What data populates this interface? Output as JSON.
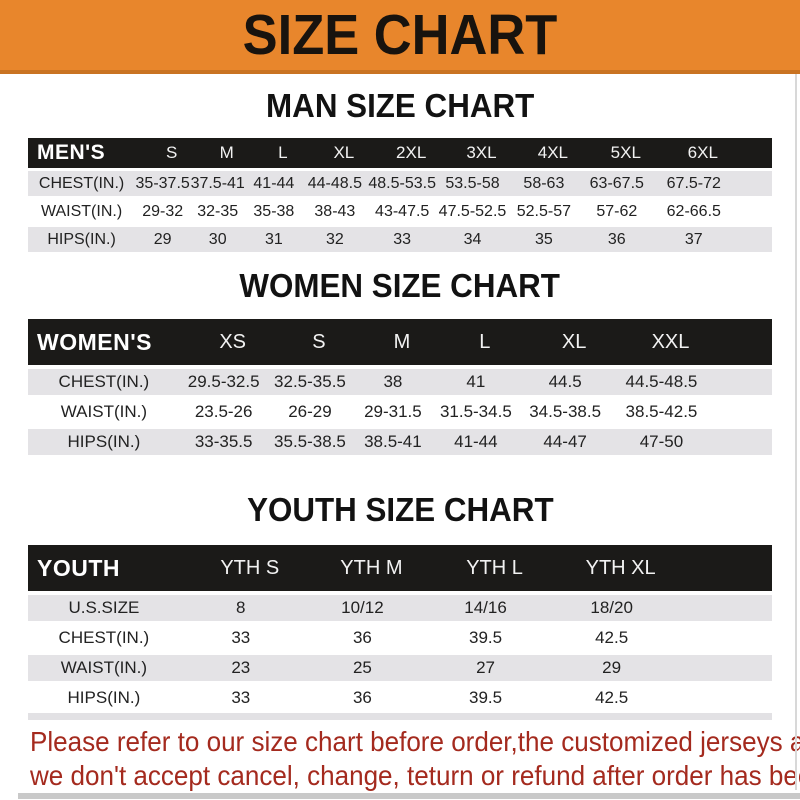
{
  "banner": {
    "title": "SIZE CHART"
  },
  "sections": [
    {
      "id": "men",
      "heading": "MAN SIZE CHART",
      "header": {
        "label": "MEN'S",
        "sizes": [
          "S",
          "M",
          "L",
          "XL",
          "2XL",
          "3XL",
          "4XL",
          "5XL",
          "6XL"
        ]
      },
      "rows": [
        {
          "label": "CHEST(IN.)",
          "values": [
            "35-37.5",
            "37.5-41",
            "41-44",
            "44-48.5",
            "48.5-53.5",
            "53.5-58",
            "58-63",
            "63-67.5",
            "67.5-72"
          ]
        },
        {
          "label": "WAIST(IN.)",
          "values": [
            "29-32",
            "32-35",
            "35-38",
            "38-43",
            "43-47.5",
            "47.5-52.5",
            "52.5-57",
            "57-62",
            "62-66.5"
          ]
        },
        {
          "label": "HIPS(IN.)",
          "values": [
            "29",
            "30",
            "31",
            "32",
            "33",
            "34",
            "35",
            "36",
            "37"
          ]
        }
      ]
    },
    {
      "id": "women",
      "heading": "WOMEN SIZE CHART",
      "header": {
        "label": "WOMEN'S",
        "sizes": [
          "XS",
          "S",
          "M",
          "L",
          "XL",
          "XXL"
        ]
      },
      "rows": [
        {
          "label": "CHEST(IN.)",
          "values": [
            "29.5-32.5",
            "32.5-35.5",
            "38",
            "41",
            "44.5",
            "44.5-48.5"
          ]
        },
        {
          "label": "WAIST(IN.)",
          "values": [
            "23.5-26",
            "26-29",
            "29-31.5",
            "31.5-34.5",
            "34.5-38.5",
            "38.5-42.5"
          ]
        },
        {
          "label": "HIPS(IN.)",
          "values": [
            "33-35.5",
            "35.5-38.5",
            "38.5-41",
            "41-44",
            "44-47",
            "47-50"
          ]
        }
      ]
    },
    {
      "id": "youth",
      "heading": "YOUTH SIZE CHART",
      "header": {
        "label": "YOUTH",
        "sizes": [
          "YTH S",
          "YTH M",
          "YTH L",
          "YTH XL"
        ]
      },
      "rows": [
        {
          "label": "U.S.SIZE",
          "values": [
            "8",
            "10/12",
            "14/16",
            "18/20"
          ]
        },
        {
          "label": "CHEST(IN.)",
          "values": [
            "33",
            "36",
            "39.5",
            "42.5"
          ]
        },
        {
          "label": "WAIST(IN.)",
          "values": [
            "23",
            "25",
            "27",
            "29"
          ]
        },
        {
          "label": "HIPS(IN.)",
          "values": [
            "33",
            "36",
            "39.5",
            "42.5"
          ]
        }
      ]
    }
  ],
  "footer": {
    "line1": "Please refer to our size chart before order,the customized jerseys are special products,",
    "line2": "we don't accept cancel, change, teturn or refund after order has been placed!"
  },
  "colors": {
    "banner_bg": "#E8862C",
    "banner_border": "#C97322",
    "header_bar_bg": "#1B1A18",
    "stripe_row_bg": "#E4E3E6",
    "footer_text": "#A42A1E",
    "heading_text": "#121212"
  }
}
